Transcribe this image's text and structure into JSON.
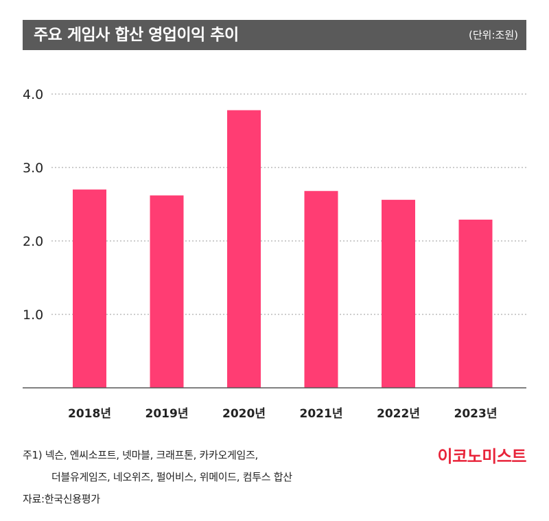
{
  "header": {
    "title": "주요 게임사 합산 영업이익 추이",
    "unit": "(단위:조원)"
  },
  "chart_data": {
    "type": "bar",
    "categories": [
      "2018년",
      "2019년",
      "2020년",
      "2021년",
      "2022년",
      "2023년"
    ],
    "values": [
      2.7,
      2.62,
      3.78,
      2.68,
      2.56,
      2.29
    ],
    "yticks": [
      "1.0",
      "2.0",
      "3.0",
      "4.0"
    ],
    "ylim": [
      0,
      4
    ],
    "grid": true,
    "bar_color": "#ff3d73"
  },
  "notes": {
    "line1": "주1) 넥슨, 엔씨소프트, 넷마블, 크래프톤, 카카오게임즈,",
    "line2": "더블유게임즈, 네오위즈, 펄어비스, 위메이드, 컴투스 합산",
    "source": "자료:한국신용평가"
  },
  "brand": {
    "logo_text": "이코노미스트",
    "color": "#e8243a"
  }
}
